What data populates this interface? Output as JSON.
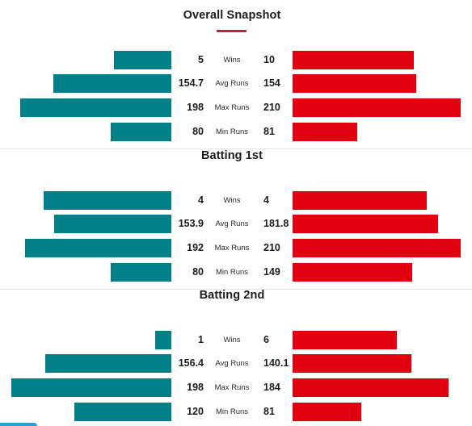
{
  "colors": {
    "team_a_bar": "#028089",
    "team_b_bar": "#e0000f",
    "accent": "#c0233c"
  },
  "sections": [
    {
      "title": "Overall Snapshot",
      "rows": [
        {
          "metric": "Wins",
          "left_label": "5",
          "right_label": "10",
          "left": 5,
          "right": 10,
          "max": 13.9
        },
        {
          "metric": "Avg Runs",
          "left_label": "154.7",
          "right_label": "154",
          "left": 154.7,
          "right": 154,
          "max": 210
        },
        {
          "metric": "Max Runs",
          "left_label": "198",
          "right_label": "210",
          "left": 198,
          "right": 210,
          "max": 210
        },
        {
          "metric": "Min Runs",
          "left_label": "80",
          "right_label": "81",
          "left": 80,
          "right": 81,
          "max": 210
        }
      ]
    },
    {
      "title": "Batting 1st",
      "rows": [
        {
          "metric": "Wins",
          "left_label": "4",
          "right_label": "4",
          "left": 4,
          "right": 4,
          "max": 5
        },
        {
          "metric": "Avg Runs",
          "left_label": "153.9",
          "right_label": "181.8",
          "left": 153.9,
          "right": 181.8,
          "max": 210
        },
        {
          "metric": "Max Runs",
          "left_label": "192",
          "right_label": "210",
          "left": 192,
          "right": 210,
          "max": 210
        },
        {
          "metric": "Min Runs",
          "left_label": "80",
          "right_label": "149",
          "left": 80,
          "right": 149,
          "max": 210
        }
      ]
    },
    {
      "title": "Batting 2nd",
      "rows": [
        {
          "metric": "Wins",
          "left_label": "1",
          "right_label": "6",
          "left": 1,
          "right": 6,
          "max": 9.7
        },
        {
          "metric": "Avg Runs",
          "left_label": "156.4",
          "right_label": "140.1",
          "left": 156.4,
          "right": 140.1,
          "max": 198
        },
        {
          "metric": "Max Runs",
          "left_label": "198",
          "right_label": "184",
          "left": 198,
          "right": 184,
          "max": 198
        },
        {
          "metric": "Min Runs",
          "left_label": "120",
          "right_label": "81",
          "left": 120,
          "right": 81,
          "max": 198
        }
      ]
    }
  ]
}
